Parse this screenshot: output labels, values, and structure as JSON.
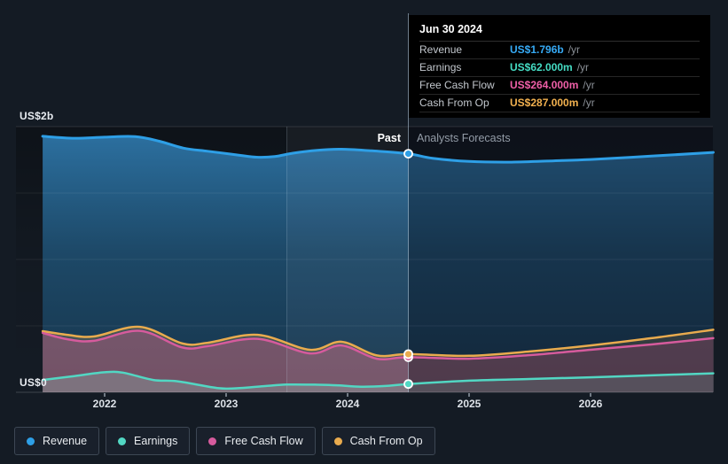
{
  "page": {
    "background": "#141b24"
  },
  "tooltip": {
    "date": "Jun 30 2024",
    "rows": [
      {
        "label": "Revenue",
        "value": "US$1.796b",
        "suffix": "/yr",
        "color": "#36aaf5"
      },
      {
        "label": "Earnings",
        "value": "US$62.000m",
        "suffix": "/yr",
        "color": "#45dcc4"
      },
      {
        "label": "Free Cash Flow",
        "value": "US$264.000m",
        "suffix": "/yr",
        "color": "#ef5fa7"
      },
      {
        "label": "Cash From Op",
        "value": "US$287.000m",
        "suffix": "/yr",
        "color": "#f2b14f"
      }
    ]
  },
  "axis": {
    "y_top_label": "US$2b",
    "y_bottom_label": "US$0",
    "x_tick_labels": [
      "2022",
      "2023",
      "2024",
      "2025",
      "2026"
    ]
  },
  "zones": {
    "past_label": "Past",
    "forecast_label": "Analysts Forecasts"
  },
  "legend": [
    {
      "label": "Revenue",
      "color": "#2e9fe6"
    },
    {
      "label": "Earnings",
      "color": "#52d7c3"
    },
    {
      "label": "Free Cash Flow",
      "color": "#d65b9d"
    },
    {
      "label": "Cash From Op",
      "color": "#e9ab4e"
    }
  ],
  "chart_data": {
    "type": "area",
    "title": "Past performance and analysts forecasts",
    "x_unit": "calendar year (decimal)",
    "y_unit": "US$ millions per year",
    "x_range": [
      2021.49,
      2027.01
    ],
    "y_range": [
      0,
      2000
    ],
    "x_ticks": [
      2022,
      2023,
      2024,
      2025,
      2026
    ],
    "gridlines_musd": [
      2000,
      1500,
      1000,
      500,
      0
    ],
    "divider_x": 2024.5,
    "divider_date": "Jun 30 2024",
    "highlight_band_x": [
      2023.5,
      2024.5
    ],
    "legend_position": "bottom",
    "series": [
      {
        "name": "Revenue",
        "color": "#2e9fe6",
        "width": 3,
        "value_at_divider_musd": 1796,
        "past": [
          [
            2021.49,
            1927
          ],
          [
            2021.75,
            1913
          ],
          [
            2022.0,
            1921
          ],
          [
            2022.25,
            1925
          ],
          [
            2022.45,
            1890
          ],
          [
            2022.65,
            1838
          ],
          [
            2022.85,
            1815
          ],
          [
            2023.05,
            1792
          ],
          [
            2023.25,
            1770
          ],
          [
            2023.4,
            1775
          ],
          [
            2023.55,
            1800
          ],
          [
            2023.75,
            1822
          ],
          [
            2023.95,
            1830
          ],
          [
            2024.2,
            1818
          ],
          [
            2024.5,
            1796
          ]
        ],
        "forecast": [
          [
            2024.5,
            1796
          ],
          [
            2024.7,
            1762
          ],
          [
            2025.0,
            1738
          ],
          [
            2025.35,
            1733
          ],
          [
            2025.7,
            1743
          ],
          [
            2026.0,
            1753
          ],
          [
            2026.5,
            1778
          ],
          [
            2027.01,
            1806
          ]
        ]
      },
      {
        "name": "Cash From Op",
        "color": "#e9ab4e",
        "width": 2.5,
        "value_at_divider_musd": 287,
        "past": [
          [
            2021.49,
            460
          ],
          [
            2021.69,
            433
          ],
          [
            2021.91,
            420
          ],
          [
            2022.29,
            493
          ],
          [
            2022.64,
            367
          ],
          [
            2022.85,
            373
          ],
          [
            2023.26,
            433
          ],
          [
            2023.69,
            320
          ],
          [
            2023.95,
            380
          ],
          [
            2024.24,
            277
          ],
          [
            2024.5,
            287
          ]
        ],
        "forecast": [
          [
            2024.5,
            287
          ],
          [
            2025.0,
            275
          ],
          [
            2025.5,
            307
          ],
          [
            2026.0,
            353
          ],
          [
            2026.5,
            407
          ],
          [
            2027.01,
            471
          ]
        ]
      },
      {
        "name": "Free Cash Flow",
        "color": "#d65b9d",
        "width": 2.5,
        "value_at_divider_musd": 264,
        "past": [
          [
            2021.49,
            447
          ],
          [
            2021.69,
            400
          ],
          [
            2021.91,
            387
          ],
          [
            2022.29,
            463
          ],
          [
            2022.64,
            337
          ],
          [
            2022.85,
            347
          ],
          [
            2023.26,
            403
          ],
          [
            2023.69,
            293
          ],
          [
            2023.95,
            353
          ],
          [
            2024.24,
            253
          ],
          [
            2024.5,
            264
          ]
        ],
        "forecast": [
          [
            2024.5,
            264
          ],
          [
            2025.0,
            253
          ],
          [
            2025.5,
            280
          ],
          [
            2026.0,
            320
          ],
          [
            2026.5,
            360
          ],
          [
            2027.01,
            407
          ]
        ]
      },
      {
        "name": "Earnings",
        "color": "#52d7c3",
        "width": 2.5,
        "value_at_divider_musd": 62,
        "past": [
          [
            2021.49,
            93
          ],
          [
            2021.75,
            122
          ],
          [
            2022.0,
            151
          ],
          [
            2022.15,
            148
          ],
          [
            2022.4,
            93
          ],
          [
            2022.6,
            83
          ],
          [
            2022.94,
            31
          ],
          [
            2023.13,
            33
          ],
          [
            2023.33,
            47
          ],
          [
            2023.5,
            58
          ],
          [
            2023.73,
            57
          ],
          [
            2023.91,
            53
          ],
          [
            2024.11,
            42
          ],
          [
            2024.31,
            47
          ],
          [
            2024.5,
            62
          ]
        ],
        "forecast": [
          [
            2024.5,
            62
          ],
          [
            2025.0,
            87
          ],
          [
            2025.5,
            100
          ],
          [
            2026.0,
            113
          ],
          [
            2026.5,
            127
          ],
          [
            2027.01,
            143
          ]
        ]
      }
    ]
  }
}
